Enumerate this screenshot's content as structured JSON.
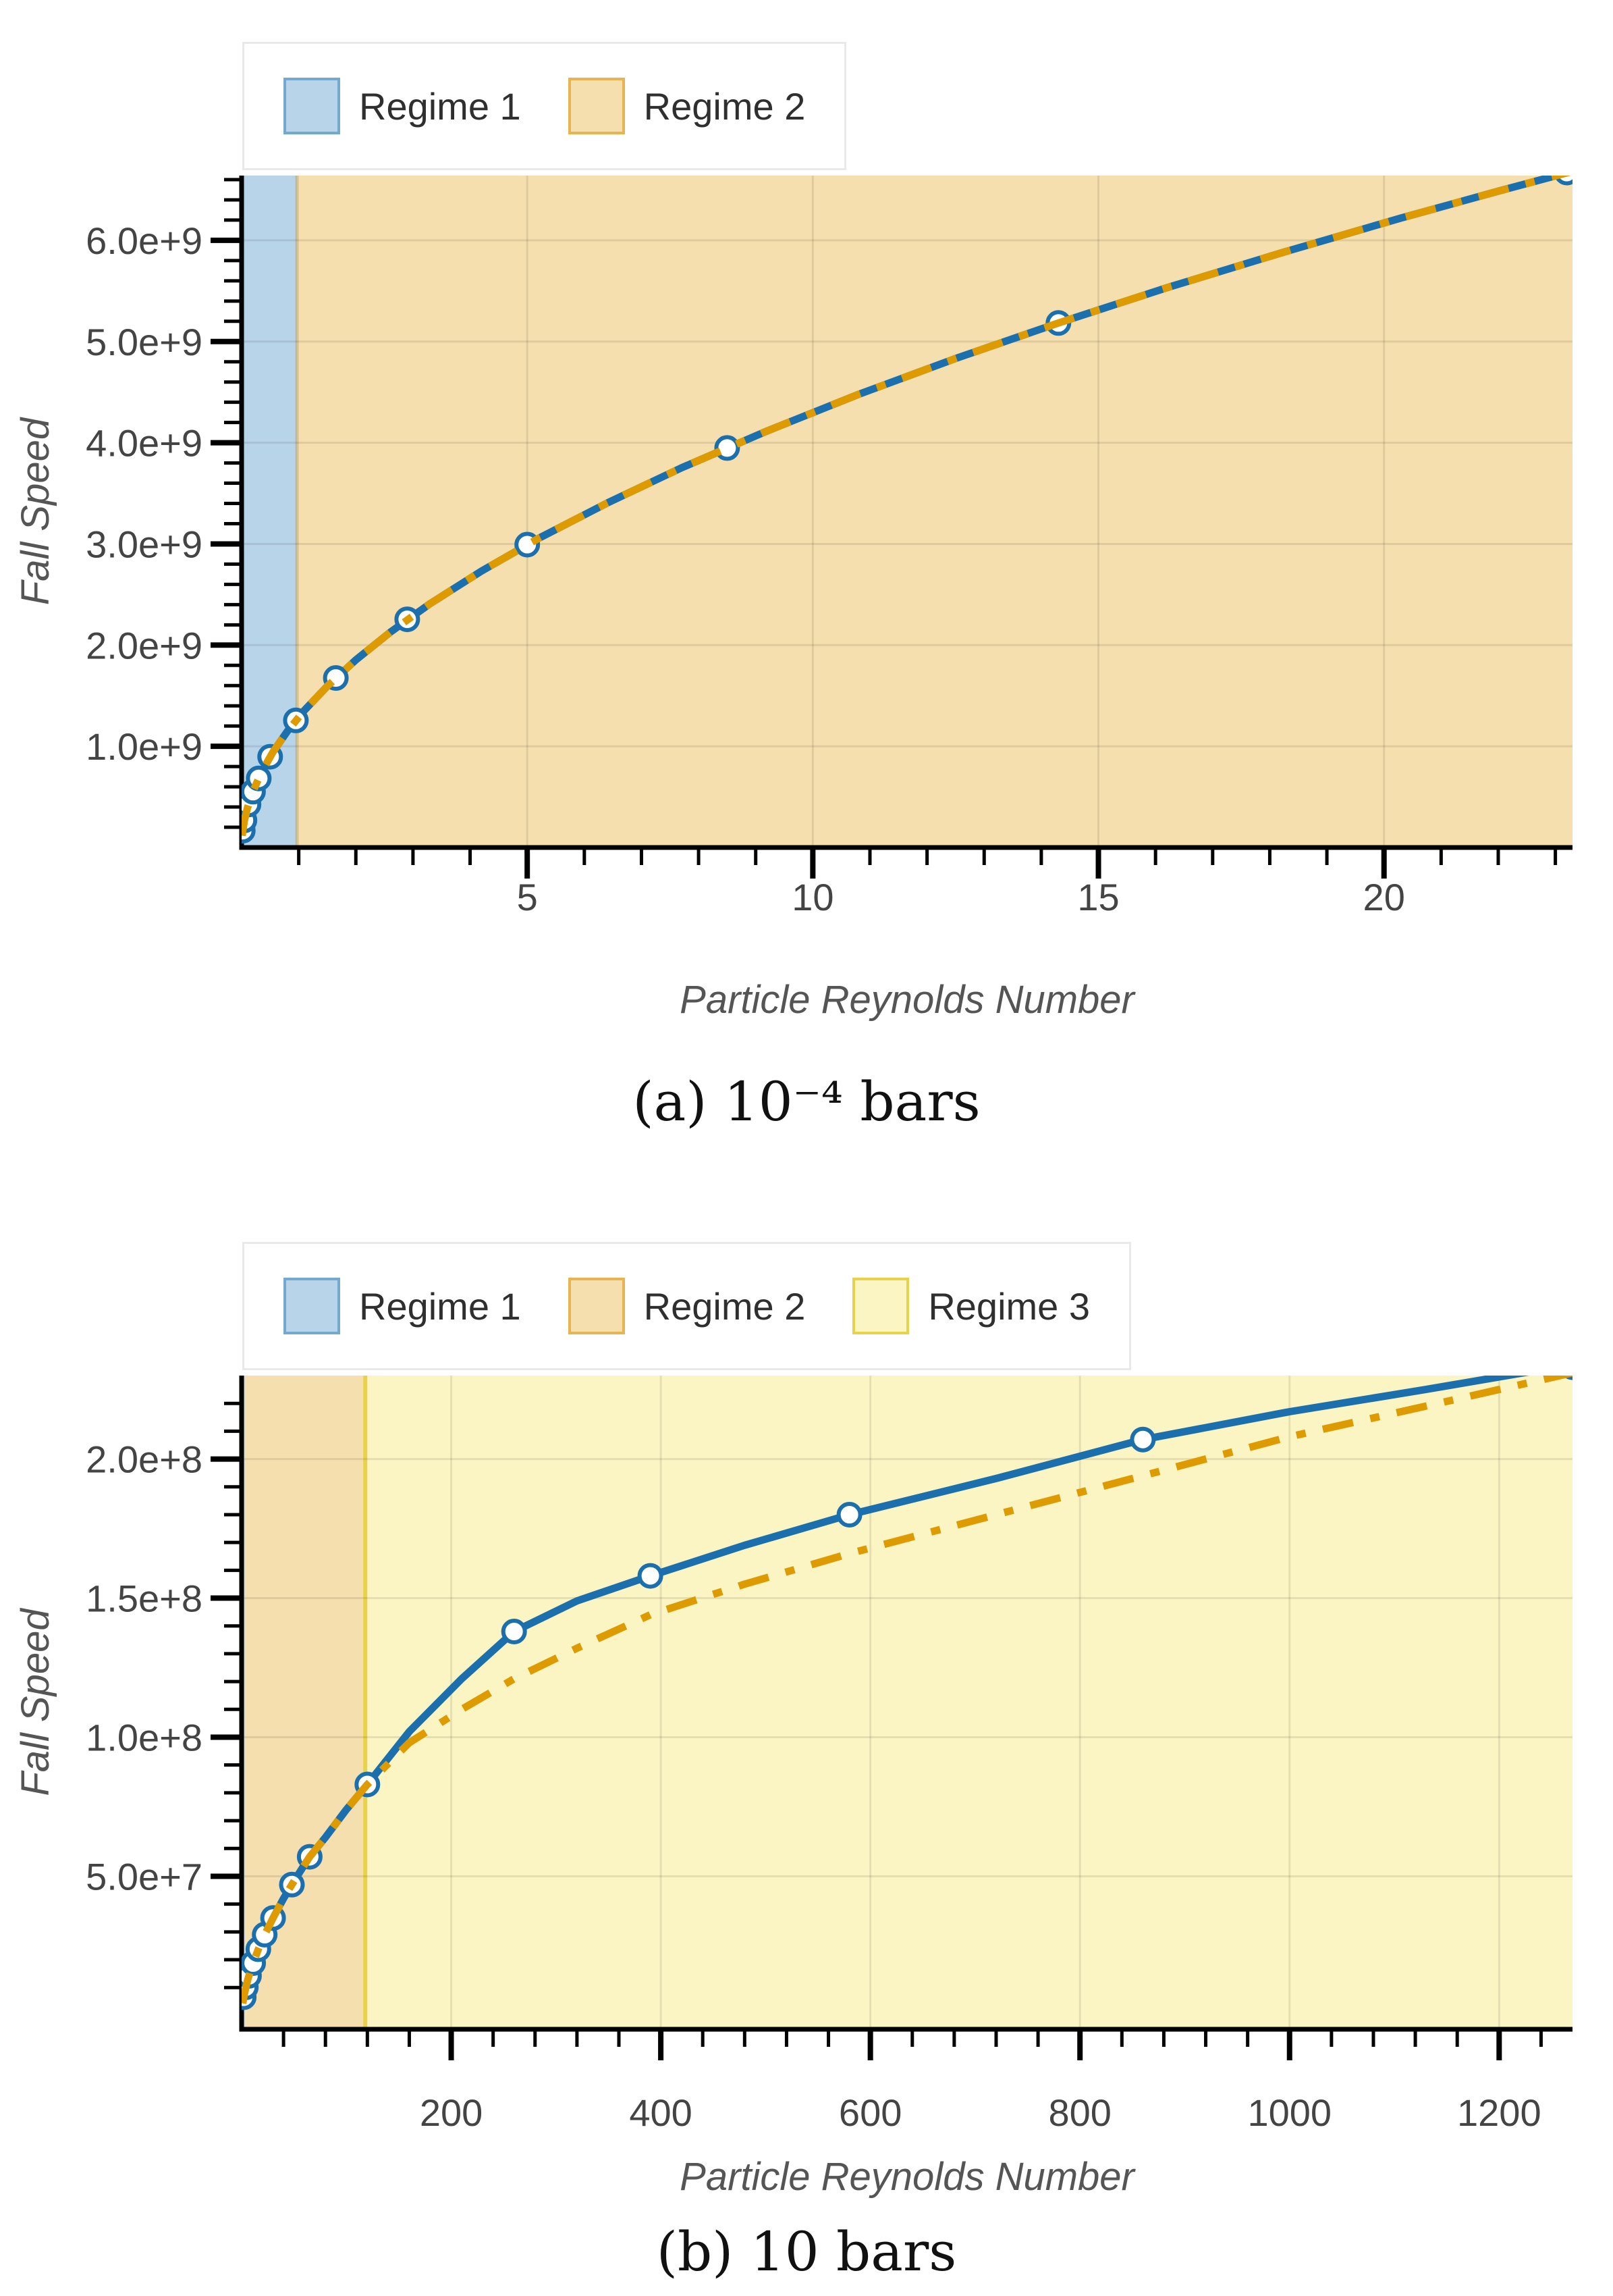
{
  "page": {
    "background": "#ffffff"
  },
  "colors": {
    "blue_line": "#1c6fad",
    "orange_line": "#de9b00",
    "marker_fill": "#ffffff",
    "regime1_fill": "#b8d4e8",
    "regime1_edge": "#74a9cf",
    "regime2_fill": "#f6dfae",
    "regime2_edge": "#e6b450",
    "regime3_fill": "#fbf5c3",
    "regime3_edge": "#e8d24a",
    "grid": "#000000",
    "axis": "#000000",
    "tick_text": "#444444",
    "axis_title_text": "#555555",
    "legend_text": "#2f2f2f",
    "legend_border": "#e9e9e9",
    "caption_text": "#111111"
  },
  "chart_data": [
    {
      "id": "a",
      "type": "line",
      "caption": "(a) 10⁻⁴ bars",
      "xlabel": "Particle Reynolds Number",
      "ylabel": "Fall Speed",
      "xlim": [
        0,
        23.3
      ],
      "ylim": [
        0,
        6640000000.0
      ],
      "grid": true,
      "legend_position": "top-left",
      "x_major_ticks": [
        {
          "v": 5,
          "label": "5"
        },
        {
          "v": 10,
          "label": "10"
        },
        {
          "v": 15,
          "label": "15"
        },
        {
          "v": 20,
          "label": "20"
        }
      ],
      "x_minor_step": 1,
      "y_major_ticks": [
        {
          "v": 1000000000.0,
          "label": "1.0e+9"
        },
        {
          "v": 2000000000.0,
          "label": "2.0e+9"
        },
        {
          "v": 3000000000.0,
          "label": "3.0e+9"
        },
        {
          "v": 4000000000.0,
          "label": "4.0e+9"
        },
        {
          "v": 5000000000.0,
          "label": "5.0e+9"
        },
        {
          "v": 6000000000.0,
          "label": "6.0e+9"
        }
      ],
      "y_minor_step": 200000000.0,
      "regions": [
        {
          "name": "Regime 1",
          "from": 0,
          "to": 0.97,
          "fill_key": "regime1_fill"
        },
        {
          "name": "Regime 2",
          "from": 0.97,
          "to": 23.3,
          "fill_key": "regime2_fill",
          "boundary_color": "rgba(170,140,70,0.35)",
          "boundary_width": 5
        }
      ],
      "legend": [
        {
          "label": "Regime 1",
          "fill_key": "regime1_fill",
          "edge_key": "regime1_edge"
        },
        {
          "label": "Regime 2",
          "fill_key": "regime2_fill",
          "edge_key": "regime2_edge"
        }
      ],
      "series": [
        {
          "name": "blue_solid",
          "style": "solid",
          "color_key": "blue_line",
          "x": [
            0.01,
            0.02,
            0.05,
            0.1,
            0.2,
            0.35,
            0.55,
            0.8,
            1.1,
            1.5,
            2,
            2.6,
            3.3,
            4.2,
            5.2,
            6.4,
            7.7,
            9.2,
            10.8,
            12.5,
            14.3,
            16.2,
            18.2,
            20.3,
            22,
            23.3
          ],
          "y": [
            116000000.0,
            166000000.0,
            269000000.0,
            387000000.0,
            556000000.0,
            745000000.0,
            944000000.0,
            1148000000.0,
            1356000000.0,
            1594000000.0,
            1854000000.0,
            2127000000.0,
            2410000000.0,
            2732000000.0,
            3055000000.0,
            3404000000.0,
            3752000000.0,
            4116000000.0,
            4478000000.0,
            4832000000.0,
            5183000000.0,
            5532000000.0,
            5876000000.0,
            6221000000.0,
            6486000000.0,
            6682000000.0
          ],
          "markers": {
            "x": [
              0.02,
              0.05,
              0.12,
              0.2,
              0.3,
              0.5,
              0.95,
              1.65,
              2.9,
              5.0,
              8.5,
              14.3,
              23.2
            ],
            "y": [
              166000000.0,
              269000000.0,
              425000000.0,
              552000000.0,
              683000000.0,
              897000000.0,
              1256000000.0,
              1675000000.0,
              2255000000.0,
              2993000000.0,
              3948000000.0,
              5183000000.0,
              6670000000.0
            ]
          }
        },
        {
          "name": "orange_dashdot",
          "style": "dashdot",
          "color_key": "orange_line",
          "x": [
            0.01,
            0.02,
            0.05,
            0.1,
            0.2,
            0.35,
            0.55,
            0.8,
            1.1,
            1.5,
            2,
            2.6,
            3.3,
            4.2,
            5.2,
            6.4,
            7.7,
            9.2,
            10.8,
            12.5,
            14.3,
            16.2,
            18.2,
            20.3,
            22,
            23.3
          ],
          "y": [
            116000000.0,
            166000000.0,
            269000000.0,
            387000000.0,
            556000000.0,
            745000000.0,
            944000000.0,
            1148000000.0,
            1356000000.0,
            1594000000.0,
            1854000000.0,
            2127000000.0,
            2410000000.0,
            2732000000.0,
            3055000000.0,
            3404000000.0,
            3752000000.0,
            4116000000.0,
            4478000000.0,
            4832000000.0,
            5183000000.0,
            5532000000.0,
            5876000000.0,
            6221000000.0,
            6486000000.0,
            6682000000.0
          ]
        }
      ]
    },
    {
      "id": "b",
      "type": "line",
      "caption": "(b) 10 bars",
      "xlabel": "Particle Reynolds Number",
      "ylabel": "Fall Speed",
      "xlim": [
        0,
        1270
      ],
      "ylim": [
        -5000000.0,
        230000000.0
      ],
      "grid": true,
      "legend_position": "top-left",
      "x_major_ticks": [
        {
          "v": 200,
          "label": "200"
        },
        {
          "v": 400,
          "label": "400"
        },
        {
          "v": 600,
          "label": "600"
        },
        {
          "v": 800,
          "label": "800"
        },
        {
          "v": 1000,
          "label": "1000"
        },
        {
          "v": 1200,
          "label": "1200"
        }
      ],
      "x_minor_step": 40,
      "y_major_ticks": [
        {
          "v": 50000000.0,
          "label": "5.0e+7"
        },
        {
          "v": 100000000.0,
          "label": "1.0e+8"
        },
        {
          "v": 150000000.0,
          "label": "1.5e+8"
        },
        {
          "v": 200000000.0,
          "label": "2.0e+8"
        }
      ],
      "y_minor_step": 10000000.0,
      "regions": [
        {
          "name": "Regime 1",
          "from": 0,
          "to": 3,
          "fill_key": "regime1_fill"
        },
        {
          "name": "Regime 2",
          "from": 3,
          "to": 118,
          "fill_key": "regime2_fill"
        },
        {
          "name": "Regime 3",
          "from": 118,
          "to": 1270,
          "fill_key": "regime3_fill",
          "boundary_color": "#e8d24a",
          "boundary_width": 6
        }
      ],
      "legend": [
        {
          "label": "Regime 1",
          "fill_key": "regime1_fill",
          "edge_key": "regime1_edge"
        },
        {
          "label": "Regime 2",
          "fill_key": "regime2_fill",
          "edge_key": "regime2_edge"
        },
        {
          "label": "Regime 3",
          "fill_key": "regime3_fill",
          "edge_key": "regime3_edge"
        }
      ],
      "series": [
        {
          "name": "blue_solid",
          "style": "solid",
          "color_key": "blue_line",
          "x": [
            1,
            3,
            6,
            10,
            16,
            22,
            30,
            40,
            48,
            58,
            65,
            80,
            100,
            120,
            160,
            210,
            260,
            320,
            390,
            480,
            580,
            720,
            860,
            1000,
            1130,
            1270
          ],
          "y": [
            4300000.0,
            8400000.0,
            13000000.0,
            17800000.0,
            23800000.0,
            29000000.0,
            35000000.0,
            42000000.0,
            47000000.0,
            53000000.0,
            57000000.0,
            64000000.0,
            74000000.0,
            83000000.0,
            102000000.0,
            121000000.0,
            138000000.0,
            149000000.0,
            158000000.0,
            169000000.0,
            180000000.0,
            193000000.0,
            207000000.0,
            217000000.0,
            225000000.0,
            234000000.0
          ],
          "markers": {
            "x": [
              2,
              4,
              7,
              11,
              16,
              22,
              30,
              48,
              65,
              120,
              260,
              390,
              580,
              860,
              1270
            ],
            "y": [
              6500000.0,
              10100000.0,
              14200000.0,
              18800000.0,
              23800000.0,
              29000000.0,
              35000000.0,
              47000000.0,
              57000000.0,
              83000000.0,
              138000000.0,
              158000000.0,
              180000000.0,
              207000000.0,
              233000000.0
            ]
          }
        },
        {
          "name": "orange_dashdot",
          "style": "dashdot",
          "color_key": "orange_line",
          "x": [
            1,
            3,
            6,
            10,
            16,
            22,
            30,
            40,
            48,
            58,
            65,
            80,
            100,
            120,
            160,
            210,
            260,
            320,
            390,
            480,
            580,
            720,
            860,
            1000,
            1130,
            1270
          ],
          "y": [
            4300000.0,
            8400000.0,
            13000000.0,
            17800000.0,
            23800000.0,
            29000000.0,
            35000000.0,
            42000000.0,
            47000000.0,
            53000000.0,
            57000000.0,
            64000000.0,
            74000000.0,
            83000000.0,
            98000000.0,
            110000000.0,
            121000000.0,
            132000000.0,
            144000000.0,
            155000000.0,
            166000000.0,
            180000000.0,
            194000000.0,
            208000000.0,
            219000000.0,
            231000000.0
          ]
        }
      ]
    }
  ]
}
